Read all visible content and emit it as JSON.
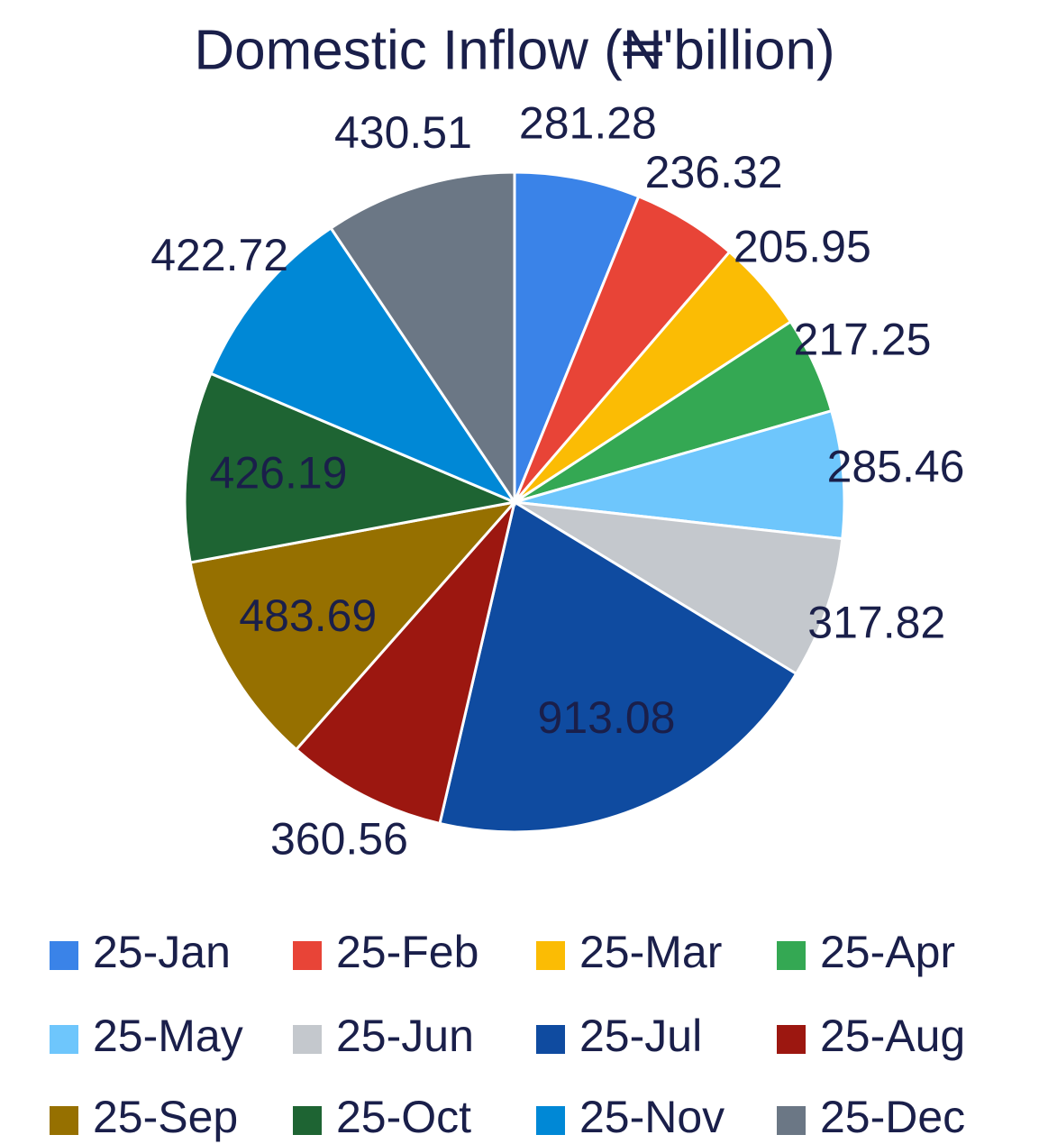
{
  "chart_data": {
    "type": "pie",
    "title": "Domestic Inflow (₦'billion)",
    "categories": [
      "25-Jan",
      "25-Feb",
      "25-Mar",
      "25-Apr",
      "25-May",
      "25-Jun",
      "25-Jul",
      "25-Aug",
      "25-Sep",
      "25-Oct",
      "25-Nov",
      "25-Dec"
    ],
    "values": [
      281.28,
      236.32,
      205.95,
      217.25,
      285.46,
      317.82,
      913.08,
      360.56,
      483.69,
      426.19,
      422.72,
      430.51
    ],
    "colors": [
      "#3a83e8",
      "#e84437",
      "#fbbc04",
      "#34a853",
      "#6ec6fc",
      "#c4c8cd",
      "#0f4ba0",
      "#9c1710",
      "#967000",
      "#1e6433",
      "#0088d6",
      "#6b7785"
    ],
    "legend": "bottom"
  }
}
